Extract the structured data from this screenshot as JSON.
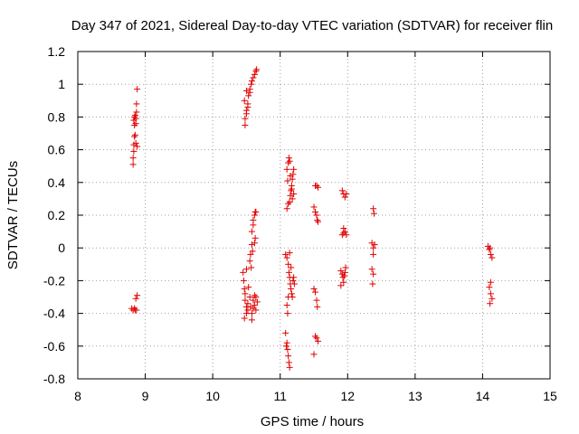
{
  "chart_data": {
    "type": "scatter",
    "title": "Day 347 of 2021, Sidereal Day-to-day VTEC variation (SDTVAR) for receiver flin",
    "xlabel": "GPS time / hours",
    "ylabel": "SDTVAR / TECUs",
    "xlim": [
      8,
      15
    ],
    "ylim": [
      -0.8,
      1.2
    ],
    "x_ticks": [
      "8",
      "9",
      "10",
      "11",
      "12",
      "13",
      "14",
      "15"
    ],
    "y_ticks": [
      "1.2",
      "1",
      "0.8",
      "0.6",
      "0.4",
      "0.2",
      "0",
      "-0.2",
      "-0.4",
      "-0.6",
      "-0.8"
    ],
    "grid": true,
    "marker": "+",
    "color": "#e00000",
    "series": [
      {
        "name": "SDTVAR",
        "points": [
          [
            8.82,
            0.51
          ],
          [
            8.82,
            0.55
          ],
          [
            8.83,
            0.59
          ],
          [
            8.83,
            0.63
          ],
          [
            8.84,
            0.68
          ],
          [
            8.84,
            0.75
          ],
          [
            8.83,
            0.78
          ],
          [
            8.84,
            0.8
          ],
          [
            8.85,
            0.81
          ],
          [
            8.86,
            0.79
          ],
          [
            8.86,
            0.76
          ],
          [
            8.87,
            0.83
          ],
          [
            8.87,
            0.88
          ],
          [
            8.88,
            0.97
          ],
          [
            8.86,
            0.64
          ],
          [
            8.88,
            0.62
          ],
          [
            8.85,
            0.69
          ],
          [
            8.8,
            -0.37
          ],
          [
            8.82,
            -0.38
          ],
          [
            8.84,
            -0.37
          ],
          [
            8.85,
            -0.38
          ],
          [
            8.86,
            -0.31
          ],
          [
            8.88,
            -0.29
          ],
          [
            8.87,
            -0.38
          ],
          [
            10.48,
            0.75
          ],
          [
            10.48,
            0.79
          ],
          [
            10.5,
            0.82
          ],
          [
            10.5,
            0.84
          ],
          [
            10.52,
            0.86
          ],
          [
            10.52,
            0.88
          ],
          [
            10.53,
            0.93
          ],
          [
            10.55,
            0.95
          ],
          [
            10.55,
            0.97
          ],
          [
            10.57,
            1.0
          ],
          [
            10.58,
            1.02
          ],
          [
            10.6,
            1.04
          ],
          [
            10.62,
            1.06
          ],
          [
            10.64,
            1.08
          ],
          [
            10.65,
            1.09
          ],
          [
            10.47,
            0.9
          ],
          [
            10.5,
            0.96
          ],
          [
            10.55,
            -0.08
          ],
          [
            10.56,
            -0.04
          ],
          [
            10.58,
            0.02
          ],
          [
            10.58,
            0.1
          ],
          [
            10.6,
            0.14
          ],
          [
            10.6,
            0.17
          ],
          [
            10.62,
            0.2
          ],
          [
            10.63,
            0.22
          ],
          [
            10.64,
            0.22
          ],
          [
            10.59,
            -0.02
          ],
          [
            10.62,
            0.03
          ],
          [
            10.63,
            0.06
          ],
          [
            10.57,
            -0.12
          ],
          [
            10.45,
            -0.15
          ],
          [
            10.46,
            -0.2
          ],
          [
            10.47,
            -0.25
          ],
          [
            10.48,
            -0.28
          ],
          [
            10.48,
            -0.32
          ],
          [
            10.5,
            -0.36
          ],
          [
            10.5,
            -0.4
          ],
          [
            10.52,
            -0.38
          ],
          [
            10.52,
            -0.34
          ],
          [
            10.55,
            -0.3
          ],
          [
            10.56,
            -0.36
          ],
          [
            10.58,
            -0.4
          ],
          [
            10.58,
            -0.44
          ],
          [
            10.6,
            -0.37
          ],
          [
            10.6,
            -0.32
          ],
          [
            10.62,
            -0.29
          ],
          [
            10.62,
            -0.35
          ],
          [
            10.64,
            -0.38
          ],
          [
            10.64,
            -0.3
          ],
          [
            10.66,
            -0.33
          ],
          [
            10.47,
            -0.43
          ],
          [
            10.5,
            -0.13
          ],
          [
            10.53,
            -0.24
          ],
          [
            11.1,
            0.24
          ],
          [
            11.12,
            0.27
          ],
          [
            11.14,
            0.28
          ],
          [
            11.15,
            0.32
          ],
          [
            11.16,
            0.35
          ],
          [
            11.17,
            0.38
          ],
          [
            11.18,
            0.42
          ],
          [
            11.19,
            0.45
          ],
          [
            11.2,
            0.48
          ],
          [
            11.1,
            0.48
          ],
          [
            11.12,
            0.52
          ],
          [
            11.13,
            0.55
          ],
          [
            11.14,
            0.53
          ],
          [
            11.15,
            0.44
          ],
          [
            11.17,
            0.36
          ],
          [
            11.18,
            0.3
          ],
          [
            11.2,
            0.33
          ],
          [
            11.11,
            0.41
          ],
          [
            11.08,
            -0.04
          ],
          [
            11.1,
            -0.06
          ],
          [
            11.12,
            -0.1
          ],
          [
            11.13,
            -0.15
          ],
          [
            11.14,
            -0.18
          ],
          [
            11.15,
            -0.22
          ],
          [
            11.16,
            -0.25
          ],
          [
            11.17,
            -0.28
          ],
          [
            11.18,
            -0.3
          ],
          [
            11.19,
            -0.2
          ],
          [
            11.2,
            -0.18
          ],
          [
            11.21,
            -0.22
          ],
          [
            11.1,
            -0.35
          ],
          [
            11.11,
            -0.4
          ],
          [
            11.12,
            -0.3
          ],
          [
            11.14,
            -0.03
          ],
          [
            11.16,
            -0.12
          ],
          [
            11.08,
            -0.52
          ],
          [
            11.1,
            -0.58
          ],
          [
            11.11,
            -0.62
          ],
          [
            11.12,
            -0.66
          ],
          [
            11.13,
            -0.7
          ],
          [
            11.14,
            -0.73
          ],
          [
            11.09,
            -0.6
          ],
          [
            11.52,
            0.38
          ],
          [
            11.54,
            0.38
          ],
          [
            11.56,
            0.37
          ],
          [
            11.5,
            0.25
          ],
          [
            11.52,
            0.22
          ],
          [
            11.54,
            0.2
          ],
          [
            11.55,
            0.17
          ],
          [
            11.56,
            0.16
          ],
          [
            11.5,
            -0.25
          ],
          [
            11.52,
            -0.27
          ],
          [
            11.54,
            -0.32
          ],
          [
            11.55,
            -0.36
          ],
          [
            11.52,
            -0.54
          ],
          [
            11.54,
            -0.55
          ],
          [
            11.56,
            -0.57
          ],
          [
            11.5,
            -0.65
          ],
          [
            11.92,
            0.35
          ],
          [
            11.94,
            0.33
          ],
          [
            11.96,
            0.31
          ],
          [
            11.98,
            0.33
          ],
          [
            11.94,
            0.12
          ],
          [
            11.94,
            0.09
          ],
          [
            11.96,
            0.1
          ],
          [
            11.98,
            0.08
          ],
          [
            11.92,
            0.08
          ],
          [
            11.9,
            -0.14
          ],
          [
            11.92,
            -0.16
          ],
          [
            11.93,
            -0.18
          ],
          [
            11.94,
            -0.21
          ],
          [
            11.96,
            -0.15
          ],
          [
            11.97,
            -0.12
          ],
          [
            11.9,
            -0.23
          ],
          [
            11.95,
            -0.17
          ],
          [
            12.38,
            0.24
          ],
          [
            12.39,
            0.21
          ],
          [
            12.36,
            0.03
          ],
          [
            12.38,
            0.0
          ],
          [
            12.4,
            0.02
          ],
          [
            12.38,
            -0.04
          ],
          [
            12.36,
            -0.13
          ],
          [
            12.38,
            -0.16
          ],
          [
            12.37,
            -0.22
          ],
          [
            14.08,
            0.01
          ],
          [
            14.1,
            -0.01
          ],
          [
            14.12,
            -0.04
          ],
          [
            14.14,
            -0.06
          ],
          [
            14.11,
            0.0
          ],
          [
            14.12,
            -0.21
          ],
          [
            14.1,
            -0.24
          ],
          [
            14.12,
            -0.28
          ],
          [
            14.14,
            -0.31
          ],
          [
            14.11,
            -0.34
          ]
        ]
      }
    ]
  }
}
